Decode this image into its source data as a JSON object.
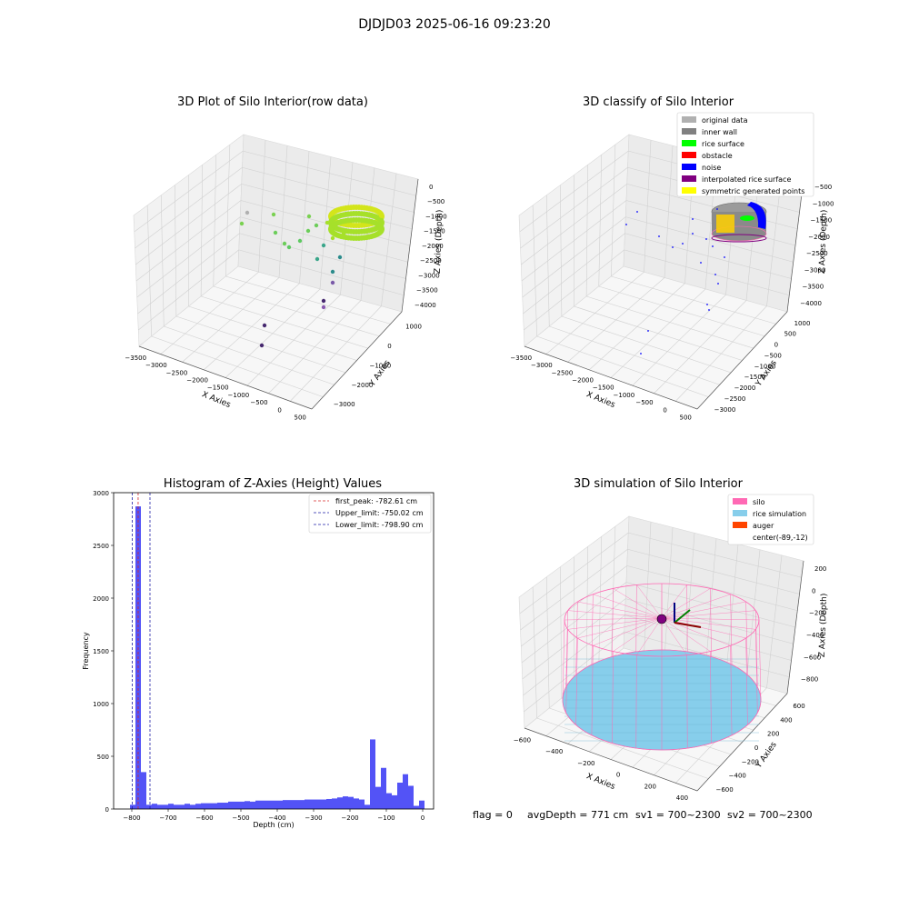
{
  "figure": {
    "suptitle": "DJDJD03 2025-06-16 09:23:20",
    "footer": {
      "flag": "flag = 0",
      "avg_depth": "avgDepth = 771 cm",
      "sv1": "sv1 = 700~2300",
      "sv2": "sv2 = 700~2300"
    }
  },
  "chart_data": [
    {
      "type": "scatter",
      "projection": "3d",
      "title": "3D Plot of Silo Interior(row data)",
      "xlabel": "X Axies",
      "ylabel": "Y Axies",
      "zlabel": "Z Axies (Depth)",
      "x_ticks": [
        "−3500",
        "−3000",
        "−2500",
        "−2000",
        "−1500",
        "−1000",
        "−500",
        "0",
        "500"
      ],
      "y_ticks": [
        "1000",
        "0",
        "−1000",
        "−2000",
        "−3000"
      ],
      "z_ticks": [
        "0",
        "−500",
        "−1000",
        "−1500",
        "−2000",
        "−2500",
        "−3000",
        "−3500",
        "−4000"
      ],
      "xlim": [
        -3500,
        500
      ],
      "ylim": [
        -3000,
        1000
      ],
      "zlim": [
        -4000,
        0
      ],
      "grid": true,
      "colormap": "viridis",
      "sample_points": [
        {
          "x": -3100,
          "y": 200,
          "z": -950
        },
        {
          "x": -2700,
          "y": 100,
          "z": -1100
        },
        {
          "x": -2500,
          "y": 0,
          "z": -1400
        },
        {
          "x": -2200,
          "y": -100,
          "z": -1500
        },
        {
          "x": -1900,
          "y": -200,
          "z": -1800
        },
        {
          "x": -1500,
          "y": -400,
          "z": -2000
        },
        {
          "x": -1000,
          "y": -500,
          "z": -2400
        },
        {
          "x": -800,
          "y": -700,
          "z": -2800
        },
        {
          "x": -700,
          "y": -900,
          "z": -3300
        },
        {
          "x": -1800,
          "y": -1500,
          "z": -3700
        },
        {
          "x": -2000,
          "y": -1800,
          "z": -4000
        },
        {
          "x": -100,
          "y": 300,
          "z": -800
        },
        {
          "x": 0,
          "y": 200,
          "z": -780
        }
      ],
      "colors": {
        "cluster": "#a6e02a",
        "mid": "#3aa68a",
        "low": "#46286f"
      }
    },
    {
      "type": "scatter",
      "projection": "3d",
      "title": "3D classify of Silo Interior",
      "xlabel": "X Axies",
      "ylabel": "Y Axies",
      "zlabel": "Z Axies (Depth)",
      "x_ticks": [
        "−3500",
        "−3000",
        "−2500",
        "−2000",
        "−1500",
        "−1000",
        "−500",
        "0",
        "500"
      ],
      "y_ticks": [
        "1000",
        "500",
        "0",
        "−500",
        "−1000",
        "−1500",
        "−2000",
        "−2500",
        "−3000"
      ],
      "z_ticks": [
        "−500",
        "−1000",
        "−1500",
        "−2000",
        "−2500",
        "−3000",
        "−3500",
        "−4000"
      ],
      "xlim": [
        -3500,
        500
      ],
      "ylim": [
        -3000,
        1000
      ],
      "zlim": [
        -4000,
        -500
      ],
      "grid": true,
      "legend_position": "top-right",
      "legend": [
        {
          "label": "original data",
          "color": "#b0b0b0"
        },
        {
          "label": "inner wall",
          "color": "#808080"
        },
        {
          "label": "rice surface",
          "color": "#00ff00"
        },
        {
          "label": "obstacle",
          "color": "#ff0000"
        },
        {
          "label": "noise",
          "color": "#0000ff"
        },
        {
          "label": "interpolated rice surface",
          "color": "#800080"
        },
        {
          "label": "symmetric generated points",
          "color": "#ffff00"
        }
      ]
    },
    {
      "type": "bar",
      "subtype": "histogram",
      "title": "Histogram of Z-Axies (Height) Values",
      "xlabel": "Depth (cm)",
      "ylabel": "Frequency",
      "xlim": [
        -850,
        30
      ],
      "ylim": [
        0,
        3000
      ],
      "x_ticks": [
        -800,
        -700,
        -600,
        -500,
        -400,
        -300,
        -200,
        -100,
        0
      ],
      "x_tick_labels": [
        "−800",
        "−700",
        "−600",
        "−500",
        "−400",
        "−300",
        "−200",
        "−100",
        "0"
      ],
      "y_ticks": [
        0,
        500,
        1000,
        1500,
        2000,
        2500,
        3000
      ],
      "bin_width": 15,
      "bins_start": [
        -805,
        -790,
        -775,
        -760,
        -745,
        -730,
        -715,
        -700,
        -685,
        -670,
        -655,
        -640,
        -625,
        -610,
        -595,
        -580,
        -565,
        -550,
        -535,
        -520,
        -505,
        -490,
        -475,
        -460,
        -445,
        -430,
        -415,
        -400,
        -385,
        -370,
        -355,
        -340,
        -325,
        -310,
        -295,
        -280,
        -265,
        -250,
        -235,
        -220,
        -205,
        -190,
        -175,
        -160,
        -145,
        -130,
        -115,
        -100,
        -85,
        -70,
        -55,
        -40,
        -25,
        -10
      ],
      "values": [
        40,
        2870,
        350,
        40,
        50,
        40,
        40,
        50,
        40,
        40,
        50,
        40,
        50,
        55,
        55,
        55,
        60,
        60,
        70,
        70,
        70,
        75,
        70,
        80,
        80,
        80,
        80,
        80,
        85,
        85,
        85,
        85,
        90,
        90,
        90,
        90,
        95,
        100,
        110,
        120,
        115,
        100,
        90,
        40,
        660,
        210,
        390,
        150,
        130,
        250,
        330,
        220,
        30,
        80
      ],
      "bar_color": "#4a4af5",
      "grid": false,
      "legend_position": "top-right",
      "vlines": [
        {
          "label": "first_peak: -782.61 cm",
          "x": -782.61,
          "color": "#d62728"
        },
        {
          "label": "Upper_limit: -750.02 cm",
          "x": -750.02,
          "color": "#1f1fa8"
        },
        {
          "label": "Lower_limit: -798.90 cm",
          "x": -798.9,
          "color": "#1f1fa8"
        }
      ]
    },
    {
      "type": "scatter",
      "projection": "3d",
      "subtype": "surface",
      "title": "3D simulation of Silo Interior",
      "xlabel": "X Axies",
      "ylabel": "Y Axies",
      "zlabel": "Z Axies (Depth)",
      "x_ticks": [
        "−600",
        "−400",
        "−200",
        "0",
        "200",
        "400"
      ],
      "y_ticks": [
        "600",
        "400",
        "200",
        "0",
        "−200",
        "−400",
        "−600"
      ],
      "z_ticks": [
        "200",
        "0",
        "−200",
        "−400",
        "−600",
        "−800"
      ],
      "xlim": [
        -600,
        400
      ],
      "ylim": [
        -600,
        600
      ],
      "zlim": [
        -800,
        200
      ],
      "grid": true,
      "legend_position": "top-right",
      "legend": [
        {
          "label": "silo",
          "color": "#ff69b4"
        },
        {
          "label": "rice simulation",
          "color": "#87ceeb"
        },
        {
          "label": "auger",
          "color": "#ff4500"
        },
        {
          "label": "center(-89,-12)",
          "color": "none"
        }
      ],
      "center": {
        "x": -89,
        "y": -12
      }
    }
  ]
}
